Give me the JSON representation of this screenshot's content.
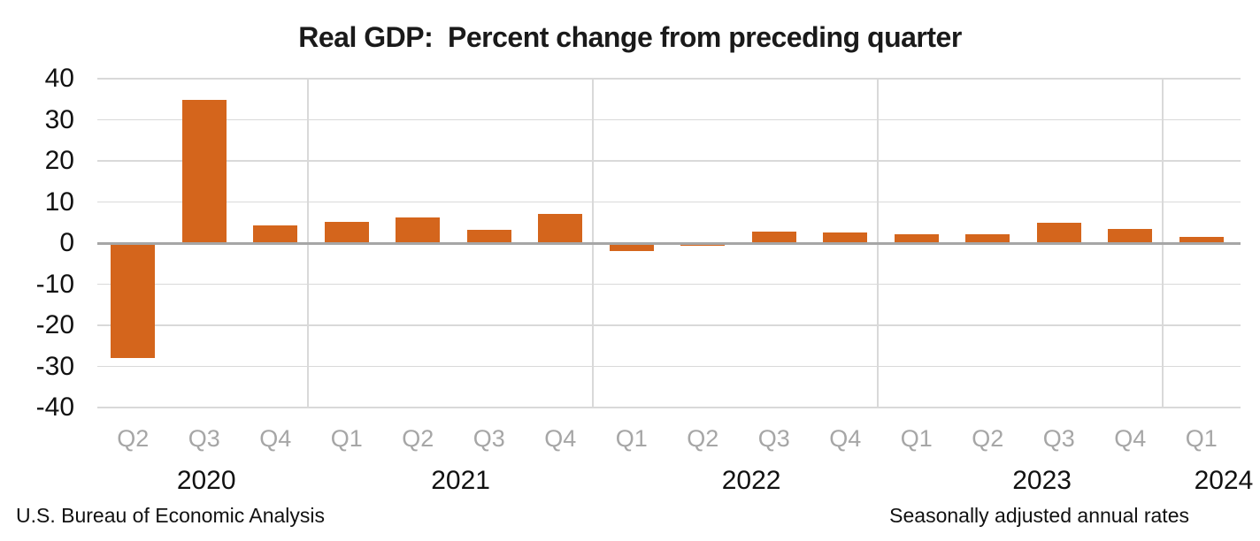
{
  "title": "Real GDP:  Percent change from preceding quarter",
  "footer": {
    "left": "U.S. Bureau of Economic Analysis",
    "right": "Seasonally adjusted annual rates"
  },
  "colors": {
    "bar": "#d4651c",
    "gridline": "#d9d9d9",
    "zero_axis": "#a6a6a6",
    "quarter_label": "#a6a6a6",
    "text": "#111111"
  },
  "chart_data": {
    "type": "bar",
    "title": "Real GDP:  Percent change from preceding quarter",
    "xlabel": "",
    "ylabel": "",
    "unit": "percent",
    "grid": true,
    "ylim": [
      -40,
      40
    ],
    "y_ticks": [
      40,
      30,
      20,
      10,
      0,
      -10,
      -20,
      -30,
      -40
    ],
    "categories": [
      "Q2",
      "Q3",
      "Q4",
      "Q1",
      "Q2",
      "Q3",
      "Q4",
      "Q1",
      "Q2",
      "Q3",
      "Q4",
      "Q1",
      "Q2",
      "Q3",
      "Q4",
      "Q1"
    ],
    "values": [
      -28.0,
      34.8,
      4.2,
      5.2,
      6.2,
      3.3,
      7.0,
      -2.0,
      -0.6,
      2.7,
      2.6,
      2.2,
      2.1,
      4.9,
      3.4,
      1.6
    ],
    "year_groups": [
      {
        "label": "2020",
        "quarters": 3
      },
      {
        "label": "2021",
        "quarters": 4
      },
      {
        "label": "2022",
        "quarters": 4
      },
      {
        "label": "2023",
        "quarters": 4
      },
      {
        "label": "2024",
        "quarters": 1
      }
    ]
  }
}
